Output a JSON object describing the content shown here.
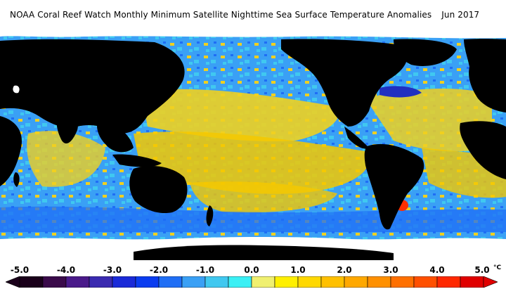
{
  "title": "NOAA Coral Reef Watch Monthly Minimum Satellite Nighttime Sea Surface Temperature Anomalies",
  "date": "Jun 2017",
  "legend": {
    "ticks": [
      "-5.0",
      "-4.0",
      "-3.0",
      "-2.0",
      "-1.0",
      "0.0",
      "1.0",
      "2.0",
      "3.0",
      "4.0",
      "5.0"
    ],
    "unit": "°C",
    "colors": [
      "#1a001a",
      "#3a0a4a",
      "#4a1a8a",
      "#3a2ab0",
      "#1a2ad8",
      "#0a3cf0",
      "#1f6ef5",
      "#3aa0f5",
      "#40c8f0",
      "#3af0f5",
      "#f0f070",
      "#fff000",
      "#ffd800",
      "#ffc000",
      "#ffa800",
      "#ff9000",
      "#ff7000",
      "#ff5000",
      "#ff2800",
      "#e00000"
    ]
  },
  "map": {
    "ocean_colors": {
      "cool": "#3aa0f5",
      "neutral": "#40c8f0",
      "warm": "#f0d020",
      "hot": "#ff3000",
      "cold": "#2030c0"
    },
    "land_color": "#000000",
    "ice_color": "#ffffff"
  }
}
